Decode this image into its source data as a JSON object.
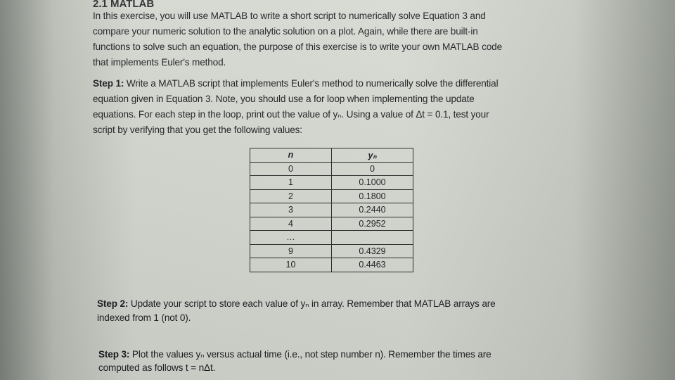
{
  "heading": "2.1 MATLAB",
  "intro": [
    "In this exercise, you will use MATLAB to write a short script to numerically solve Equation 3 and",
    "compare your numeric solution to the analytic solution on a plot. Again, while there are built-in",
    "functions to solve such an equation, the purpose of this exercise is to write your own MATLAB code",
    "that implements Euler's method."
  ],
  "step1": {
    "label": "Step 1:",
    "lines": [
      " Write a MATLAB script that implements Euler's method to numerically solve the differential",
      "equation given in Equation 3. Note, you should use a for loop when implementing the update",
      "equations. For each step in the loop, print out the value of yₙ. Using a value of Δt = 0.1, test your",
      "script by verifying that you get the following values:"
    ]
  },
  "table": {
    "headers": [
      "n",
      "yₙ"
    ],
    "rows": [
      [
        "0",
        "0"
      ],
      [
        "1",
        "0.1000"
      ],
      [
        "2",
        "0.1800"
      ],
      [
        "3",
        "0.2440"
      ],
      [
        "4",
        "0.2952"
      ],
      [
        "…",
        ""
      ],
      [
        "9",
        "0.4329"
      ],
      [
        "10",
        "0.4463"
      ]
    ]
  },
  "step2": {
    "label": "Step 2:",
    "lines": [
      " Update your script to store each value of yₙ in array. Remember that MATLAB arrays are",
      "indexed from 1 (not 0)."
    ]
  },
  "step3": {
    "label": "Step 3:",
    "lines": [
      " Plot the values yₙ versus actual time (i.e., not step number n). Remember the times are",
      "computed as follows t = nΔt."
    ]
  }
}
